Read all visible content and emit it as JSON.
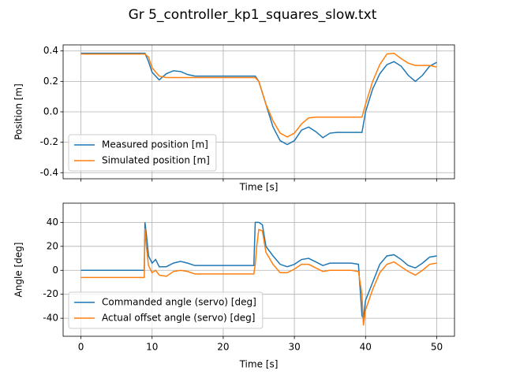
{
  "title": "Gr 5_controller_kp1_squares_slow.txt",
  "chart_data": [
    {
      "type": "line",
      "xlabel": "Time [s]",
      "ylabel": "Position [m]",
      "xtick_labels": false,
      "xlim": [
        -2.5,
        52.5
      ],
      "ylim": [
        -0.44,
        0.44
      ],
      "xticks": [
        0,
        10,
        20,
        30,
        40,
        50
      ],
      "yticks": [
        -0.4,
        -0.2,
        {
          "value": 0,
          "label": "0.0"
        },
        0.2,
        0.4
      ],
      "grid": true,
      "legend": "lower left",
      "x": [
        0,
        9,
        9.5,
        10,
        11,
        12,
        13,
        14,
        15,
        16,
        24.5,
        25,
        26,
        27,
        28,
        29,
        30,
        31,
        32,
        33,
        34,
        35,
        36,
        39.5,
        40,
        41,
        42,
        43,
        44,
        45,
        46,
        47,
        48,
        49,
        50
      ],
      "series": [
        {
          "name": "Measured position [m]",
          "color": "#1f77b4",
          "values": [
            0.385,
            0.385,
            0.33,
            0.26,
            0.21,
            0.25,
            0.27,
            0.265,
            0.245,
            0.235,
            0.235,
            0.2,
            0.05,
            -0.1,
            -0.19,
            -0.215,
            -0.19,
            -0.12,
            -0.1,
            -0.13,
            -0.17,
            -0.14,
            -0.135,
            -0.135,
            0.0,
            0.15,
            0.25,
            0.31,
            0.33,
            0.3,
            0.24,
            0.2,
            0.24,
            0.3,
            0.325
          ]
        },
        {
          "name": "Simulated position [m]",
          "color": "#ff7f0e",
          "values": [
            0.38,
            0.38,
            0.36,
            0.29,
            0.235,
            0.225,
            0.225,
            0.225,
            0.225,
            0.225,
            0.225,
            0.2,
            0.05,
            -0.06,
            -0.14,
            -0.165,
            -0.14,
            -0.08,
            -0.04,
            -0.035,
            -0.035,
            -0.035,
            -0.035,
            -0.035,
            0.05,
            0.2,
            0.31,
            0.38,
            0.385,
            0.35,
            0.32,
            0.305,
            0.305,
            0.305,
            0.295
          ]
        }
      ]
    },
    {
      "type": "line",
      "xlabel": "Time [s]",
      "ylabel": "Angle [deg]",
      "xtick_labels": true,
      "xlim": [
        -2.5,
        52.5
      ],
      "ylim": [
        -55,
        56
      ],
      "xticks": [
        0,
        10,
        20,
        30,
        40,
        50
      ],
      "yticks": [
        -40,
        -20,
        0,
        20,
        40
      ],
      "grid": true,
      "legend": "lower left",
      "x": [
        0,
        8.9,
        9,
        9.2,
        9.5,
        10,
        10.5,
        11,
        12,
        13,
        14,
        15,
        16,
        17,
        24.3,
        24.5,
        24.7,
        25,
        25.5,
        26,
        27,
        28,
        29,
        30,
        31,
        32,
        33,
        34,
        35,
        36,
        37,
        38,
        39,
        39.5,
        39.7,
        40,
        41,
        42,
        43,
        44,
        45,
        46,
        47,
        48,
        49,
        50
      ],
      "series": [
        {
          "name": "Commanded angle (servo) [deg]",
          "color": "#1f77b4",
          "values": [
            0,
            0,
            40,
            30,
            12,
            6,
            9,
            3,
            3,
            6,
            7.5,
            6,
            4,
            4,
            4,
            40,
            40,
            40,
            38,
            20,
            12,
            5,
            3,
            5,
            9,
            10,
            7,
            4,
            6,
            6,
            6,
            6,
            5,
            -38,
            -40,
            -25,
            -10,
            5,
            12,
            13,
            9,
            4,
            2,
            6,
            11,
            12
          ]
        },
        {
          "name": "Actual offset angle (servo) [deg]",
          "color": "#ff7f0e",
          "values": [
            -6,
            -6,
            35,
            20,
            4,
            -2,
            0,
            -4,
            -5,
            -1,
            0,
            -1,
            -3,
            -3,
            -3,
            5,
            20,
            34,
            33,
            15,
            5,
            -2,
            -2,
            1,
            5,
            5,
            2,
            -1,
            0,
            0,
            0,
            0,
            -1,
            -20,
            -46,
            -33,
            -16,
            -2,
            5,
            7,
            3,
            -1,
            -4,
            0,
            5,
            6
          ]
        }
      ]
    }
  ]
}
